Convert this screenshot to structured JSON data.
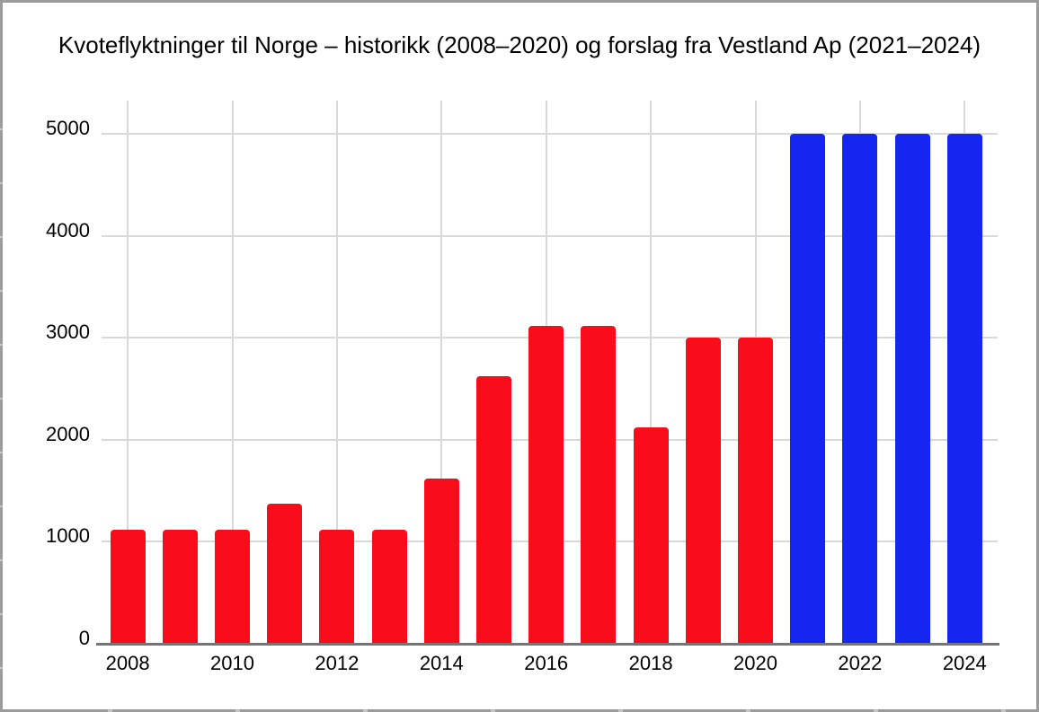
{
  "window": {
    "background": "#ffffff",
    "frame_border_color": "#9b9b9b"
  },
  "chart_data": {
    "type": "bar",
    "title": "Kvoteflyktninger til Norge – historikk (2008–2020) og forslag fra Vestland Ap (2021–2024)",
    "x": [
      "2008",
      "2009",
      "2010",
      "2011",
      "2012",
      "2013",
      "2014",
      "2015",
      "2016",
      "2017",
      "2018",
      "2019",
      "2020",
      "2021",
      "2022",
      "2023",
      "2024"
    ],
    "values": [
      1120,
      1120,
      1120,
      1370,
      1120,
      1120,
      1620,
      2620,
      3120,
      3120,
      2120,
      3000,
      3000,
      5000,
      5000,
      5000,
      5000
    ],
    "series": [
      {
        "name": "historikk (2008–2020)",
        "color": "#fa0d1b"
      },
      {
        "name": "forslag fra Vestland Ap (2021–2024)",
        "color": "#1526f0"
      }
    ],
    "bar_series_index": [
      0,
      0,
      0,
      0,
      0,
      0,
      0,
      0,
      0,
      0,
      0,
      0,
      0,
      1,
      1,
      1,
      1
    ],
    "xticks": [
      "2008",
      "2010",
      "2012",
      "2014",
      "2016",
      "2018",
      "2020",
      "2022",
      "2024"
    ],
    "yticks": [
      0,
      1000,
      2000,
      3000,
      4000,
      5000
    ],
    "ylim": [
      0,
      5320
    ],
    "grid": true,
    "legend": "none",
    "gridline_color": "#d9d9d9",
    "axis_color": "#757575",
    "text_color": "#000000"
  }
}
